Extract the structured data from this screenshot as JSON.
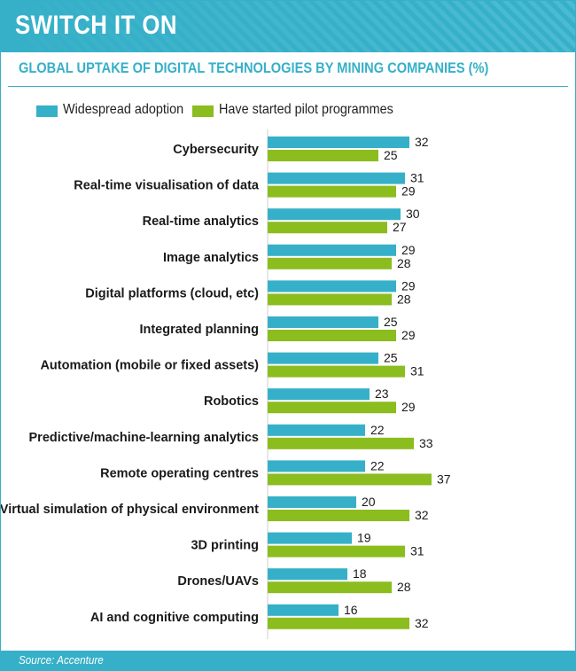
{
  "header": {
    "title": "SWITCH IT ON"
  },
  "subtitle": "GLOBAL UPTAKE OF DIGITAL TECHNOLOGIES BY MINING COMPANIES (%)",
  "legend": {
    "items": [
      {
        "label": "Widespread adoption",
        "color": "#36b0c8"
      },
      {
        "label": "Have started pilot programmes",
        "color": "#8bbd1f"
      }
    ]
  },
  "chart_data": {
    "type": "bar",
    "orientation": "horizontal",
    "title": "GLOBAL UPTAKE OF DIGITAL TECHNOLOGIES BY MINING COMPANIES (%)",
    "categories": [
      "Cybersecurity",
      "Real-time visualisation of data",
      "Real-time analytics",
      "Image analytics",
      "Digital platforms (cloud, etc)",
      "Integrated planning",
      "Automation (mobile or fixed assets)",
      "Robotics",
      "Predictive/machine-learning analytics",
      "Remote operating centres",
      "Virtual simulation of physical environment",
      "3D printing",
      "Drones/UAVs",
      "AI and cognitive computing"
    ],
    "series": [
      {
        "name": "Widespread adoption",
        "color": "#36b0c8",
        "values": [
          32,
          31,
          30,
          29,
          29,
          25,
          25,
          23,
          22,
          22,
          20,
          19,
          18,
          16
        ]
      },
      {
        "name": "Have started pilot programmes",
        "color": "#8bbd1f",
        "values": [
          25,
          29,
          27,
          28,
          28,
          29,
          31,
          29,
          33,
          37,
          32,
          31,
          28,
          32
        ]
      }
    ],
    "data_labels": true,
    "legend_position": "top-left",
    "grid": false
  },
  "footer": {
    "source": "Source: Accenture"
  }
}
